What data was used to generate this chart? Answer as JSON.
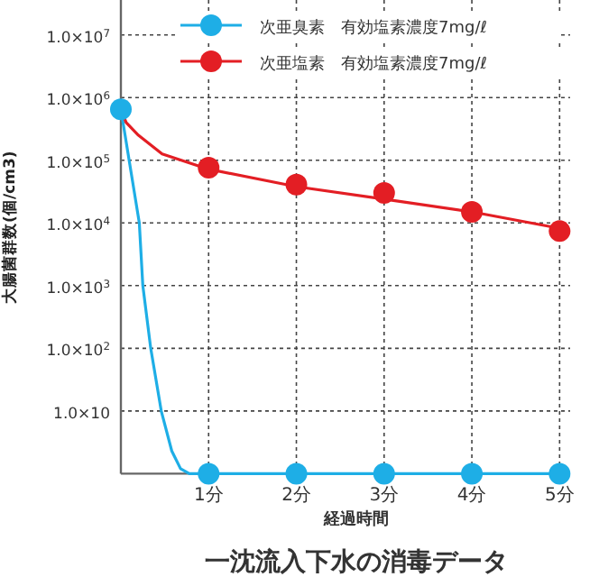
{
  "chart_data": {
    "type": "scatter",
    "title": "一沈流入下水の消毒データ",
    "xlabel": "経過時間",
    "ylabel": "大腸菌群数(個/cm3)",
    "log": "y",
    "grid": true,
    "legend": "top right",
    "marker": "circle",
    "xlim": [
      0,
      5.12
    ],
    "ylim": [
      1,
      36000000
    ],
    "xticks": [
      {
        "value": 1,
        "label": "1分"
      },
      {
        "value": 2,
        "label": "2分"
      },
      {
        "value": 3,
        "label": "3分"
      },
      {
        "value": 4,
        "label": "4分"
      },
      {
        "value": 5,
        "label": "5分"
      }
    ],
    "yticks": [
      {
        "value": 10,
        "label": "1.0×10"
      },
      {
        "value": 100,
        "label": "1.0×10$^{2}$"
      },
      {
        "value": 1000,
        "label": "1.0×10$^{3}$"
      },
      {
        "value": 10000,
        "label": "1.0×10$^{4}$"
      },
      {
        "value": 100000,
        "label": "1.0×10$^{5}$"
      },
      {
        "value": 1000000,
        "label": "1.0×10$^{6}$"
      },
      {
        "value": 10000000,
        "label": "1.0×10$^{7}$"
      }
    ],
    "series": [
      {
        "color": "#1eaee6",
        "type": "line",
        "x": [
          0,
          0.21,
          0.25,
          0.34,
          0.46,
          0.58,
          0.68,
          0.78,
          1,
          2,
          3,
          4,
          5
        ],
        "values": [
          650000,
          10000,
          1000,
          100,
          10,
          2.3,
          1.2,
          1,
          1,
          1,
          1,
          1,
          1
        ],
        "marker": "none"
      },
      {
        "name": "次亜臭素　有効塩素濃度7mg/ℓ",
        "color": "#1eaee6",
        "x": [
          0,
          1,
          2,
          3,
          4,
          5
        ],
        "values": [
          650000,
          1,
          1,
          1,
          1,
          1
        ]
      },
      {
        "color": "#e31e24",
        "type": "line",
        "x": [
          0,
          0.06,
          0.2,
          0.47,
          1,
          2,
          3,
          4,
          5
        ],
        "values": [
          650000,
          400000,
          250000,
          126000,
          72000,
          38000,
          24000,
          15000,
          8200
        ],
        "marker": "none"
      },
      {
        "name": "次亜塩素　有効塩素濃度7mg/ℓ",
        "color": "#e31e24",
        "x": [
          1,
          2,
          3,
          4,
          5
        ],
        "values": [
          76000,
          41000,
          30000,
          15000,
          7400
        ]
      }
    ]
  }
}
